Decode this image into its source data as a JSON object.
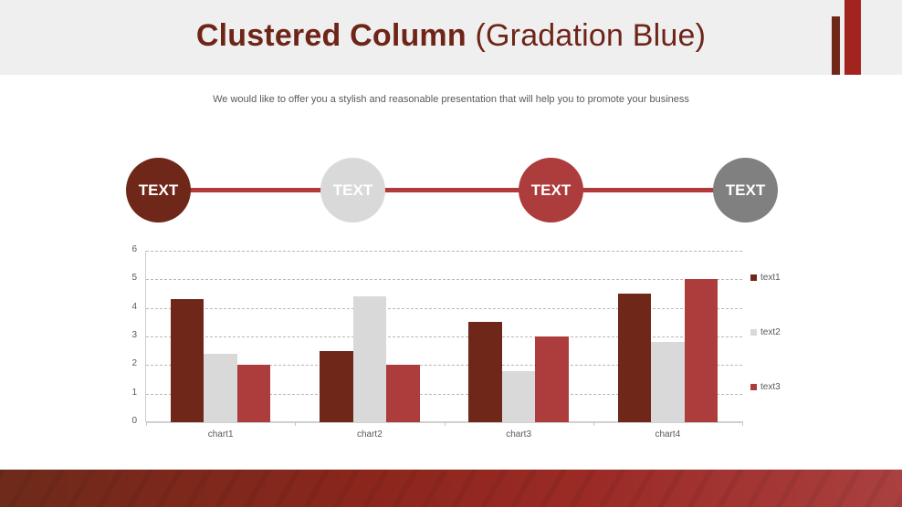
{
  "header": {
    "title_bold": "Clustered Column",
    "title_light": "(Gradation Blue)",
    "subtitle": "We would like to offer you a stylish and reasonable presentation that will help you to promote your business"
  },
  "timeline": {
    "nodes": [
      {
        "label": "TEXT",
        "color": "#6e2718"
      },
      {
        "label": "TEXT",
        "color": "#d9d9d9"
      },
      {
        "label": "TEXT",
        "color": "#ad3c3c"
      },
      {
        "label": "TEXT",
        "color": "#808080"
      }
    ],
    "line_color": "#b03a3a"
  },
  "colors": {
    "title": "#6e2518",
    "header_bg": "#efefef",
    "accent_dark": "#6f2717",
    "accent_red": "#a3241f"
  },
  "chart_data": {
    "type": "bar",
    "title": "",
    "xlabel": "",
    "ylabel": "",
    "categories": [
      "chart1",
      "chart2",
      "chart3",
      "chart4"
    ],
    "series": [
      {
        "name": "text1",
        "color": "#6e2718",
        "values": [
          4.3,
          2.5,
          3.5,
          4.5
        ]
      },
      {
        "name": "text2",
        "color": "#d9d9d9",
        "values": [
          2.4,
          4.4,
          1.8,
          2.8
        ]
      },
      {
        "name": "text3",
        "color": "#ad3c3c",
        "values": [
          2.0,
          2.0,
          3.0,
          5.0
        ]
      }
    ],
    "ylim": [
      0,
      6
    ],
    "yticks": [
      "0",
      "1",
      "2",
      "3",
      "4",
      "5",
      "6"
    ],
    "grid": true,
    "legend_position": "right"
  }
}
